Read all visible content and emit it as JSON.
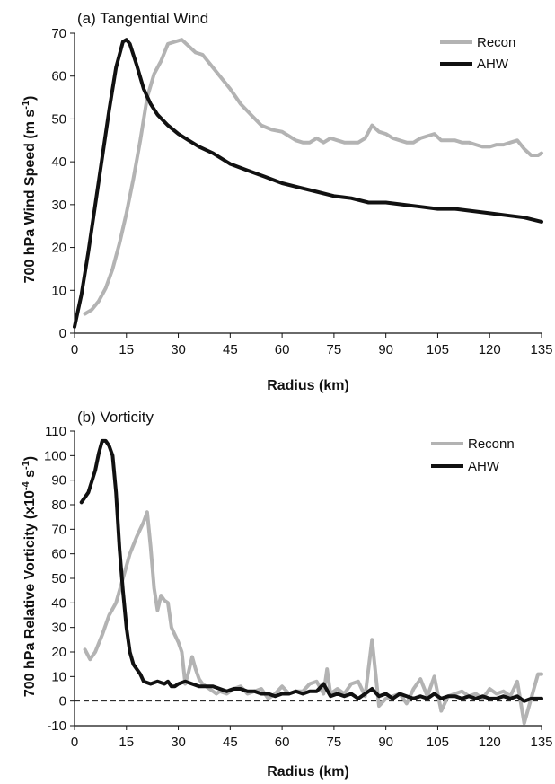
{
  "chart_data": [
    {
      "type": "line",
      "title": "(a) Tangential Wind",
      "xlabel": "Radius (km)",
      "ylabel": "700 hPa Wind Speed (m s",
      "ylabel_sup": "-1",
      "ylabel_tail": ")",
      "xlim": [
        0,
        135
      ],
      "ylim": [
        0,
        70
      ],
      "xticks": [
        0,
        15,
        30,
        45,
        60,
        75,
        90,
        105,
        120,
        135
      ],
      "yticks": [
        0,
        10,
        20,
        30,
        40,
        50,
        60,
        70
      ],
      "zero_line": false,
      "legend_position": "top-right",
      "series": [
        {
          "name": "Recon",
          "color": "#b3b3b3",
          "x": [
            3,
            5,
            7,
            9,
            11,
            13,
            15,
            17,
            19,
            21,
            23,
            25,
            27,
            29,
            31,
            33,
            35,
            37,
            39,
            42,
            45,
            48,
            51,
            54,
            57,
            60,
            62,
            64,
            66,
            68,
            70,
            72,
            74,
            76,
            78,
            80,
            82,
            84,
            86,
            88,
            90,
            92,
            94,
            96,
            98,
            100,
            102,
            104,
            106,
            108,
            110,
            112,
            114,
            116,
            118,
            120,
            122,
            124,
            126,
            128,
            130,
            132,
            134,
            135
          ],
          "y": [
            4.5,
            5.5,
            7.5,
            10.5,
            15,
            21,
            28,
            36,
            45,
            55,
            60.5,
            63.5,
            67.5,
            68,
            68.5,
            67,
            65.5,
            65,
            63,
            60,
            57,
            53.5,
            51,
            48.5,
            47.5,
            47,
            46,
            45,
            44.5,
            44.5,
            45.5,
            44.5,
            45.5,
            45,
            44.5,
            44.5,
            44.5,
            45.5,
            48.5,
            47,
            46.5,
            45.5,
            45,
            44.5,
            44.5,
            45.5,
            46,
            46.5,
            45,
            45,
            45,
            44.5,
            44.5,
            44,
            43.5,
            43.5,
            44,
            44,
            44.5,
            45,
            43,
            41.5,
            41.5,
            42
          ]
        },
        {
          "name": "AHW",
          "color": "#111111",
          "x": [
            0,
            2,
            4,
            6,
            8,
            10,
            12,
            14,
            15,
            16,
            18,
            20,
            22,
            24,
            27,
            30,
            33,
            36,
            40,
            45,
            50,
            55,
            60,
            65,
            70,
            75,
            80,
            85,
            90,
            95,
            100,
            105,
            110,
            115,
            120,
            125,
            130,
            135
          ],
          "y": [
            1.5,
            9,
            19,
            30,
            41,
            52,
            62,
            68,
            68.5,
            67.5,
            62.5,
            57,
            53.5,
            51,
            48.5,
            46.5,
            45,
            43.5,
            42,
            39.5,
            38,
            36.5,
            35,
            34,
            33,
            32,
            31.5,
            30.5,
            30.5,
            30,
            29.5,
            29,
            29,
            28.5,
            28,
            27.5,
            27,
            26
          ]
        }
      ]
    },
    {
      "type": "line",
      "title": "(b) Vorticity",
      "xlabel": "Radius (km)",
      "ylabel": "700 hPa Relative Vorticity (x10",
      "ylabel_sup": "-4",
      "ylabel_mid": " s",
      "ylabel_sup2": "-1",
      "ylabel_tail": ")",
      "xlim": [
        0,
        135
      ],
      "ylim": [
        -10,
        110
      ],
      "xticks": [
        0,
        15,
        30,
        45,
        60,
        75,
        90,
        105,
        120,
        135
      ],
      "yticks": [
        -10,
        0,
        10,
        20,
        30,
        40,
        50,
        60,
        70,
        80,
        90,
        100,
        110
      ],
      "zero_line": true,
      "legend_position": "top-right",
      "series": [
        {
          "name": "Reconn",
          "color": "#b3b3b3",
          "x": [
            3,
            4.5,
            6,
            8,
            10,
            12,
            14,
            16,
            18,
            20,
            21,
            22,
            23,
            24,
            25,
            26,
            27,
            28,
            29,
            30,
            31,
            32,
            33,
            34,
            35,
            36,
            37,
            38,
            39,
            40,
            41,
            42,
            44,
            46,
            48,
            50,
            52,
            54,
            56,
            58,
            60,
            62,
            64,
            66,
            68,
            70,
            72,
            73,
            74,
            76,
            78,
            80,
            82,
            84,
            86,
            88,
            90,
            92,
            94,
            96,
            98,
            100,
            102,
            104,
            106,
            108,
            110,
            112,
            114,
            116,
            118,
            120,
            122,
            124,
            126,
            128,
            130,
            132,
            134,
            135
          ],
          "y": [
            21,
            17,
            20,
            27,
            35,
            40,
            50,
            60,
            67,
            73,
            77,
            63,
            46,
            37,
            43,
            41,
            40,
            30,
            27,
            24,
            20,
            7,
            12,
            18,
            13,
            9,
            7,
            6,
            5,
            4,
            3,
            4,
            3,
            5,
            6,
            3,
            4,
            5,
            1,
            3,
            6,
            3,
            4,
            4,
            7,
            8,
            3,
            13,
            3,
            5,
            3,
            7,
            8,
            2,
            25,
            -2,
            1,
            2,
            3,
            -1,
            5,
            9,
            2,
            10,
            -4,
            2,
            3,
            4,
            2,
            3,
            1,
            5,
            3,
            4,
            2,
            8,
            -9,
            1,
            11,
            11
          ]
        },
        {
          "name": "AHW",
          "color": "#111111",
          "x": [
            2,
            4,
            6,
            7,
            8,
            9,
            10,
            11,
            12,
            13,
            14,
            15,
            16,
            17,
            18,
            19,
            20,
            22,
            24,
            26,
            27,
            28,
            29,
            30,
            32,
            34,
            36,
            38,
            40,
            42,
            44,
            46,
            48,
            50,
            52,
            54,
            56,
            58,
            60,
            62,
            64,
            66,
            68,
            70,
            72,
            74,
            76,
            78,
            80,
            82,
            84,
            86,
            88,
            90,
            92,
            94,
            96,
            98,
            100,
            102,
            104,
            106,
            108,
            110,
            112,
            114,
            116,
            118,
            120,
            122,
            124,
            126,
            128,
            130,
            132,
            134,
            135
          ],
          "y": [
            81,
            85,
            94,
            101,
            106,
            106,
            104,
            100,
            85,
            62,
            45,
            30,
            20,
            15,
            13,
            11,
            8,
            7,
            8,
            7,
            8,
            6,
            6,
            7,
            8,
            7,
            6,
            6,
            6,
            5,
            4,
            5,
            5,
            4,
            4,
            3,
            3,
            2,
            3,
            3,
            4,
            3,
            4,
            4,
            7,
            2,
            3,
            2,
            3,
            1,
            3,
            5,
            2,
            3,
            1,
            3,
            2,
            1,
            2,
            1,
            3,
            1,
            2,
            2,
            1,
            2,
            1,
            2,
            1,
            1,
            2,
            1,
            2,
            0,
            1,
            1,
            1
          ]
        }
      ]
    }
  ]
}
